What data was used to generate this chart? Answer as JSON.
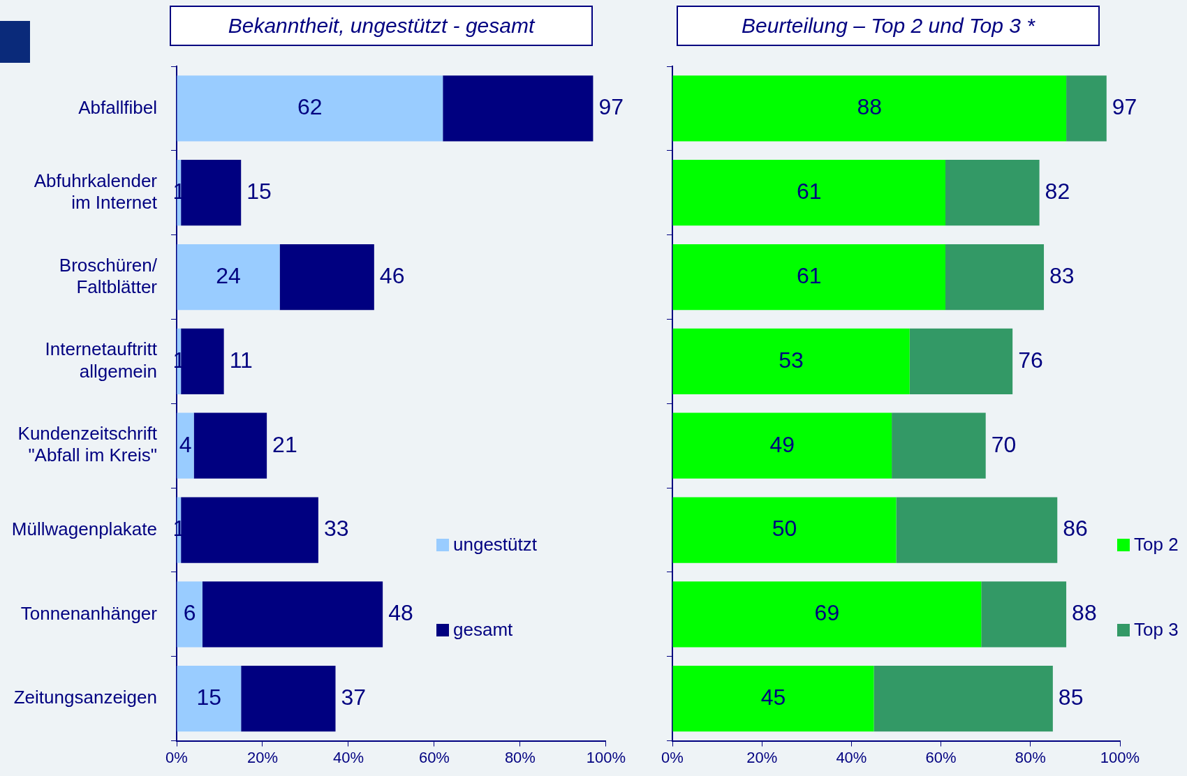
{
  "chart_data": [
    {
      "type": "bar",
      "orientation": "horizontal",
      "stacked": true,
      "title": "Bekanntheit, ungestützt - gesamt",
      "categories": [
        "Abfallfibel",
        "Abfuhrkalender im Internet",
        "Broschüren/ Faltblätter",
        "Internetauftritt allgemein",
        "Kundenzeitschrift \"Abfall im Kreis\"",
        "Müllwagenplakate",
        "Tonnenanhänger",
        "Zeitungsanzeigen"
      ],
      "series": [
        {
          "name": "ungestützt",
          "color": "#99ccff",
          "values": [
            62,
            1,
            24,
            1,
            4,
            1,
            6,
            15
          ],
          "value_labels": [
            "62",
            "1",
            "24",
            "1",
            "4",
            "1",
            "6",
            "15"
          ]
        },
        {
          "name": "gesamt",
          "color": "#000080",
          "values": [
            35,
            14,
            22,
            10,
            17,
            32,
            42,
            22
          ]
        }
      ],
      "totals": [
        "97",
        "15",
        "46",
        "11",
        "21",
        "33",
        "48",
        "37"
      ],
      "xlim": [
        0,
        100
      ],
      "xticks": [
        {
          "value": 0,
          "label": "0%"
        },
        {
          "value": 20,
          "label": "20%"
        },
        {
          "value": 40,
          "label": "40%"
        },
        {
          "value": 60,
          "label": "60%"
        },
        {
          "value": 80,
          "label": "80%"
        },
        {
          "value": 100,
          "label": "100%"
        }
      ],
      "grid": false,
      "legend": "bottom right"
    },
    {
      "type": "bar",
      "orientation": "horizontal",
      "stacked": true,
      "title": "Beurteilung – Top 2 und Top 3 *",
      "categories": [
        null,
        null,
        null,
        null,
        null,
        null,
        null,
        null
      ],
      "series": [
        {
          "name": "Top 2",
          "color": "#00ff00",
          "values": [
            88,
            61,
            61,
            53,
            49,
            50,
            69,
            45
          ],
          "value_labels": [
            "88",
            "61",
            "61",
            "53",
            "49",
            "50",
            "69",
            "45"
          ]
        },
        {
          "name": "Top 3",
          "color": "#339966",
          "values": [
            9,
            21,
            22,
            23,
            21,
            36,
            19,
            40
          ]
        }
      ],
      "totals": [
        "97",
        "82",
        "83",
        "76",
        "70",
        "86",
        "88",
        "85"
      ],
      "xlim": [
        0,
        100
      ],
      "xticks": [
        {
          "value": 0,
          "label": "0%"
        },
        {
          "value": 20,
          "label": "20%"
        },
        {
          "value": 40,
          "label": "40%"
        },
        {
          "value": 60,
          "label": "60%"
        },
        {
          "value": 80,
          "label": "80%"
        },
        {
          "value": 100,
          "label": "100%"
        }
      ],
      "grid": false,
      "legend": "bottom right",
      "tick_labels": "x"
    }
  ]
}
